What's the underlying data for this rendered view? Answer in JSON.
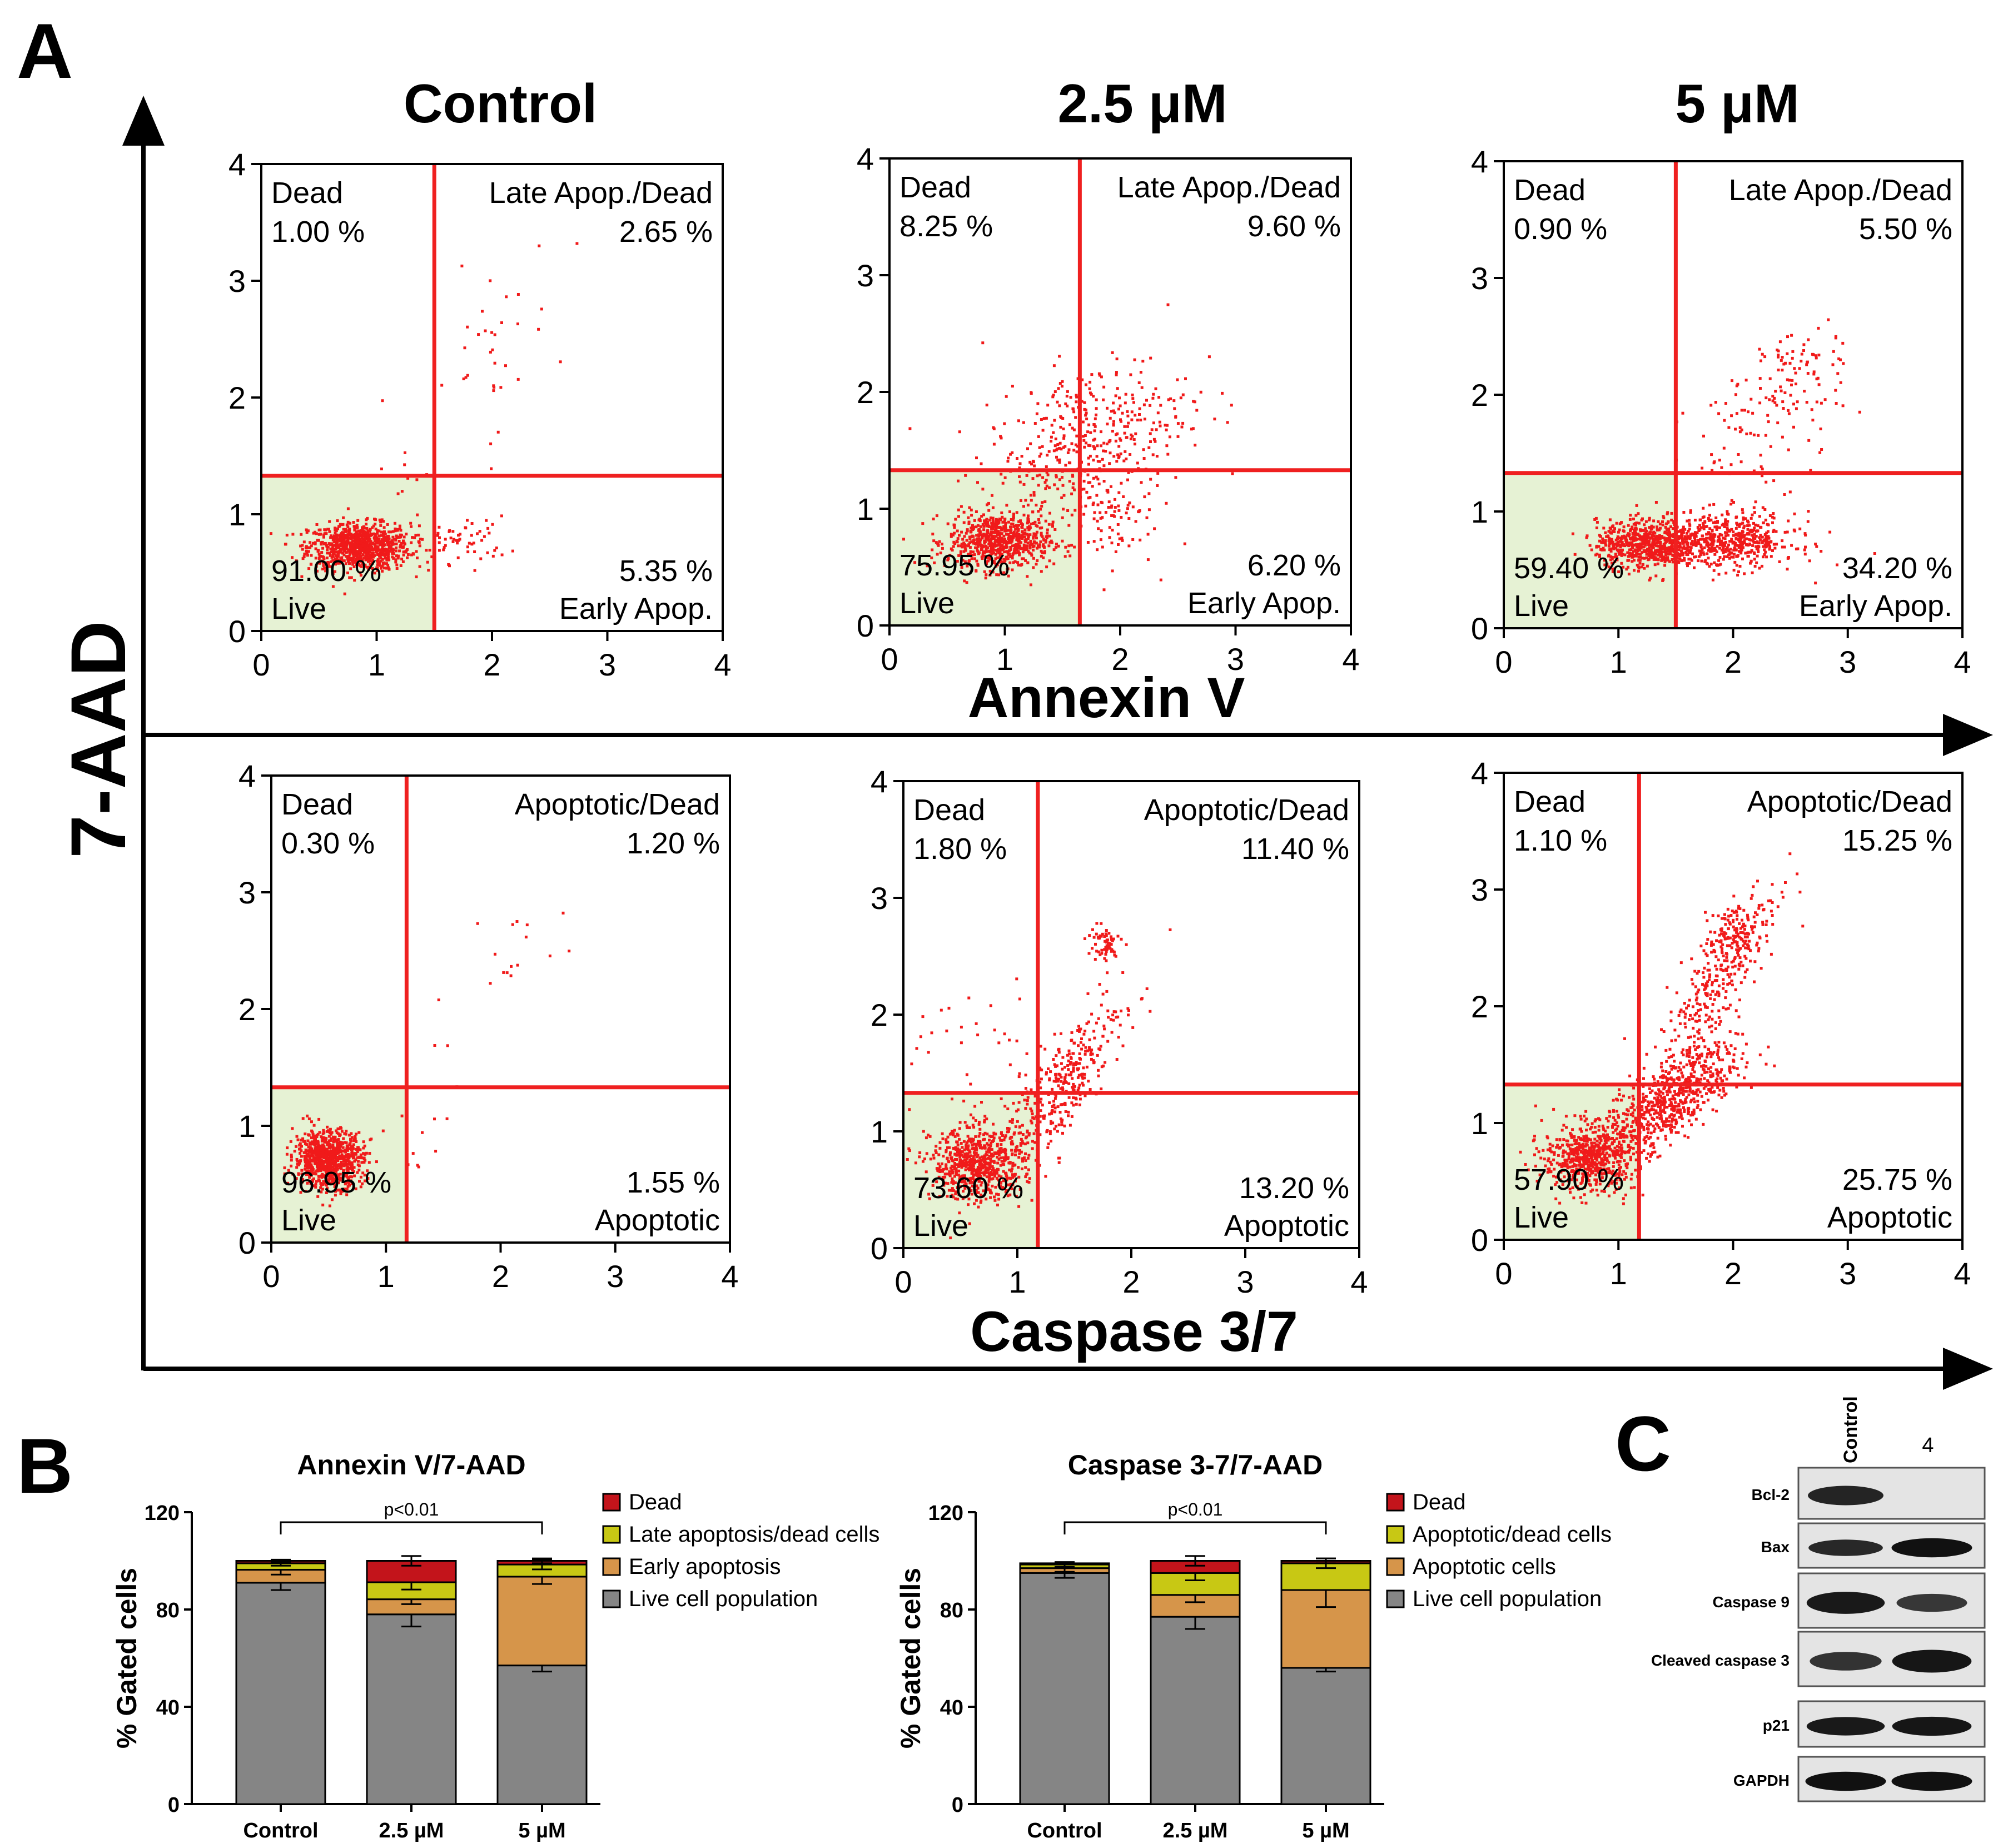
{
  "panel_labels": {
    "a": "A",
    "b": "B",
    "c": "C"
  },
  "axis_titles": {
    "y_main": "7-AAD",
    "x_top": "Annexin V",
    "x_bottom": "Caspase 3/7"
  },
  "column_titles": [
    "Control",
    "2.5 μM",
    "5 μM"
  ],
  "colors": {
    "dot": "#f01a1a",
    "gate_line": "#ef2020",
    "live_fill": "#e6f2d4",
    "dead": "#c3141b",
    "late": "#c8c814",
    "early": "#d6954a",
    "live": "#858585"
  },
  "chart_data": [
    {
      "type": "scatter",
      "panel": "A",
      "assay": "Annexin V / 7-AAD",
      "condition": "Control",
      "xlim": [
        0,
        4
      ],
      "ylim": [
        0,
        4
      ],
      "x_ticks": [
        "0",
        "1",
        "2",
        "3",
        "4"
      ],
      "y_ticks": [
        "0",
        "1",
        "2",
        "3",
        "4"
      ],
      "gate": {
        "x": 1.5,
        "y": 1.33
      },
      "quadrants": {
        "tl": {
          "label": "Dead",
          "value": "1.00 %"
        },
        "tr": {
          "label": "Late Apop./Dead",
          "value": "2.65 %"
        },
        "bl": {
          "label": "Live",
          "value": "91.00 %"
        },
        "br": {
          "label": "Early Apop.",
          "value": "5.35 %"
        }
      },
      "clusters": [
        [
          0.85,
          0.72,
          0.22,
          0.1,
          900,
          0
        ],
        [
          1.75,
          0.78,
          0.2,
          0.1,
          60,
          0
        ],
        [
          1.95,
          2.35,
          0.3,
          0.45,
          35,
          0.4
        ],
        [
          1.3,
          1.4,
          0.15,
          0.2,
          10,
          0
        ]
      ]
    },
    {
      "type": "scatter",
      "panel": "A",
      "assay": "Annexin V / 7-AAD",
      "condition": "2.5 μM",
      "xlim": [
        0,
        4
      ],
      "ylim": [
        0,
        4
      ],
      "x_ticks": [
        "0",
        "1",
        "2",
        "3",
        "4"
      ],
      "y_ticks": [
        "0",
        "1",
        "2",
        "3",
        "4"
      ],
      "gate": {
        "x": 1.65,
        "y": 1.33
      },
      "quadrants": {
        "tl": {
          "label": "Dead",
          "value": "8.25 %"
        },
        "tr": {
          "label": "Late Apop./Dead",
          "value": "9.60 %"
        },
        "bl": {
          "label": "Live",
          "value": "75.95 %"
        },
        "br": {
          "label": "Early Apop.",
          "value": "6.20 %"
        }
      },
      "clusters": [
        [
          0.95,
          0.72,
          0.22,
          0.12,
          700,
          0
        ],
        [
          1.7,
          1.55,
          0.45,
          0.38,
          450,
          0.45
        ],
        [
          1.9,
          0.9,
          0.2,
          0.2,
          70,
          0
        ]
      ]
    },
    {
      "type": "scatter",
      "panel": "A",
      "assay": "Annexin V / 7-AAD",
      "condition": "5 μM",
      "xlim": [
        0,
        4
      ],
      "ylim": [
        0,
        4
      ],
      "x_ticks": [
        "0",
        "1",
        "2",
        "3",
        "4"
      ],
      "y_ticks": [
        "0",
        "1",
        "2",
        "3",
        "4"
      ],
      "gate": {
        "x": 1.5,
        "y": 1.33
      },
      "quadrants": {
        "tl": {
          "label": "Dead",
          "value": "0.90 %"
        },
        "tr": {
          "label": "Late Apop./Dead",
          "value": "5.50 %"
        },
        "bl": {
          "label": "Live",
          "value": "59.40 %"
        },
        "br": {
          "label": "Early Apop.",
          "value": "34.20 %"
        }
      },
      "clusters": [
        [
          1.25,
          0.72,
          0.22,
          0.1,
          650,
          0
        ],
        [
          1.95,
          0.75,
          0.3,
          0.12,
          550,
          0
        ],
        [
          2.3,
          1.8,
          0.35,
          0.35,
          120,
          0.5
        ],
        [
          2.55,
          2.25,
          0.15,
          0.1,
          40,
          0
        ]
      ]
    },
    {
      "type": "scatter",
      "panel": "A",
      "assay": "Caspase 3/7 / 7-AAD",
      "condition": "Control",
      "xlim": [
        0,
        4
      ],
      "ylim": [
        0,
        4
      ],
      "x_ticks": [
        "0",
        "1",
        "2",
        "3",
        "4"
      ],
      "y_ticks": [
        "0",
        "1",
        "2",
        "3",
        "4"
      ],
      "gate": {
        "x": 1.18,
        "y": 1.33
      },
      "quadrants": {
        "tl": {
          "label": "Dead",
          "value": "0.30 %"
        },
        "tr": {
          "label": "Apoptotic/Dead",
          "value": "1.20 %"
        },
        "bl": {
          "label": "Live",
          "value": "96.95 %"
        },
        "br": {
          "label": "Apoptotic",
          "value": "1.55 %"
        }
      },
      "clusters": [
        [
          0.5,
          0.72,
          0.15,
          0.12,
          850,
          0
        ],
        [
          2.0,
          2.45,
          0.35,
          0.35,
          18,
          0.6
        ],
        [
          1.35,
          0.9,
          0.2,
          0.25,
          12,
          0
        ]
      ]
    },
    {
      "type": "scatter",
      "panel": "A",
      "assay": "Caspase 3/7 / 7-AAD",
      "condition": "2.5 μM",
      "xlim": [
        0,
        4
      ],
      "ylim": [
        0,
        4
      ],
      "x_ticks": [
        "0",
        "1",
        "2",
        "3",
        "4"
      ],
      "y_ticks": [
        "0",
        "1",
        "2",
        "3",
        "4"
      ],
      "gate": {
        "x": 1.18,
        "y": 1.33
      },
      "quadrants": {
        "tl": {
          "label": "Dead",
          "value": "1.80 %"
        },
        "tr": {
          "label": "Apoptotic/Dead",
          "value": "11.40 %"
        },
        "bl": {
          "label": "Live",
          "value": "73.60 %"
        },
        "br": {
          "label": "Apoptotic",
          "value": "13.20 %"
        }
      },
      "clusters": [
        [
          0.65,
          0.72,
          0.2,
          0.15,
          650,
          0
        ],
        [
          1.35,
          1.35,
          0.3,
          0.4,
          380,
          0.85
        ],
        [
          1.75,
          2.6,
          0.08,
          0.08,
          60,
          0
        ],
        [
          0.6,
          1.6,
          0.3,
          0.4,
          40,
          0
        ]
      ]
    },
    {
      "type": "scatter",
      "panel": "A",
      "assay": "Caspase 3/7 / 7-AAD",
      "condition": "5 μM",
      "xlim": [
        0,
        4
      ],
      "ylim": [
        0,
        4
      ],
      "x_ticks": [
        "0",
        "1",
        "2",
        "3",
        "4"
      ],
      "y_ticks": [
        "0",
        "1",
        "2",
        "3",
        "4"
      ],
      "gate": {
        "x": 1.18,
        "y": 1.33
      },
      "quadrants": {
        "tl": {
          "label": "Dead",
          "value": "1.10 %"
        },
        "tr": {
          "label": "Apoptotic/Dead",
          "value": "15.25 %"
        },
        "bl": {
          "label": "Live",
          "value": "57.90 %"
        },
        "br": {
          "label": "Apoptotic",
          "value": "25.75 %"
        }
      },
      "clusters": [
        [
          0.75,
          0.7,
          0.2,
          0.14,
          600,
          0
        ],
        [
          1.45,
          1.2,
          0.3,
          0.25,
          700,
          0.7
        ],
        [
          1.9,
          2.3,
          0.25,
          0.4,
          300,
          0.8
        ],
        [
          2.0,
          2.65,
          0.1,
          0.1,
          80,
          0
        ]
      ]
    },
    {
      "type": "bar",
      "stacked": true,
      "panel": "B",
      "title": "Annexin V/7-AAD",
      "ylabel": "% Gated cells",
      "categories": [
        "Control",
        "2.5 µM",
        "5 µM"
      ],
      "ylim": [
        0,
        120
      ],
      "y_ticks": [
        "0",
        "40",
        "80",
        "120"
      ],
      "significance": "p<0.01",
      "series": [
        {
          "name": "Live cell population",
          "values": [
            91.0,
            78.0,
            57.0
          ],
          "errors": [
            3,
            5,
            2.5
          ]
        },
        {
          "name": "Early apoptosis",
          "values": [
            5.35,
            6.2,
            36.5
          ],
          "errors": [
            2,
            2,
            3
          ]
        },
        {
          "name": "Late apoptosis/dead cells",
          "values": [
            2.65,
            7.0,
            5.0
          ],
          "errors": [
            1,
            3,
            2
          ]
        },
        {
          "name": "Dead",
          "values": [
            1.0,
            8.8,
            1.5
          ],
          "errors": [
            0.5,
            2,
            1
          ]
        }
      ],
      "legend": [
        "Dead",
        "Late apoptosis/dead cells",
        "Early apoptosis",
        "Live cell population"
      ]
    },
    {
      "type": "bar",
      "stacked": true,
      "panel": "B",
      "title": "Caspase 3-7/7-AAD",
      "ylabel": "% Gated cells",
      "categories": [
        "Control",
        "2.5 µM",
        "5 µM"
      ],
      "ylim": [
        0,
        120
      ],
      "y_ticks": [
        "0",
        "40",
        "80",
        "120"
      ],
      "significance": "p<0.01",
      "series": [
        {
          "name": "Live cell population",
          "values": [
            95.0,
            77.0,
            56.0
          ],
          "errors": [
            2,
            5,
            1.5
          ]
        },
        {
          "name": "Apoptotic cells",
          "values": [
            2.0,
            9.0,
            32.0
          ],
          "errors": [
            1.5,
            3,
            7
          ]
        },
        {
          "name": "Apoptotic/dead cells",
          "values": [
            1.5,
            9.0,
            11.0
          ],
          "errors": [
            1,
            3,
            2
          ]
        },
        {
          "name": "Dead",
          "values": [
            0.5,
            5.0,
            1.0
          ],
          "errors": [
            0.5,
            2,
            1
          ]
        }
      ],
      "legend": [
        "Dead",
        "Apoptotic/dead cells",
        "Apoptotic cells",
        "Live cell population"
      ]
    }
  ],
  "blot": {
    "lanes": [
      "Control",
      "4"
    ],
    "proteins": [
      {
        "name": "Bcl-2",
        "intensity": [
          0.8,
          0.05
        ]
      },
      {
        "name": "Bax",
        "intensity": [
          0.75,
          1.0
        ]
      },
      {
        "name": "Caspase 9",
        "intensity": [
          0.9,
          0.6
        ]
      },
      {
        "name": "Cleaved caspase 3",
        "intensity": [
          0.65,
          0.95
        ]
      },
      {
        "name": "p21",
        "intensity": [
          0.9,
          0.95
        ]
      },
      {
        "name": "GAPDH",
        "intensity": [
          1.0,
          1.0
        ]
      }
    ]
  }
}
